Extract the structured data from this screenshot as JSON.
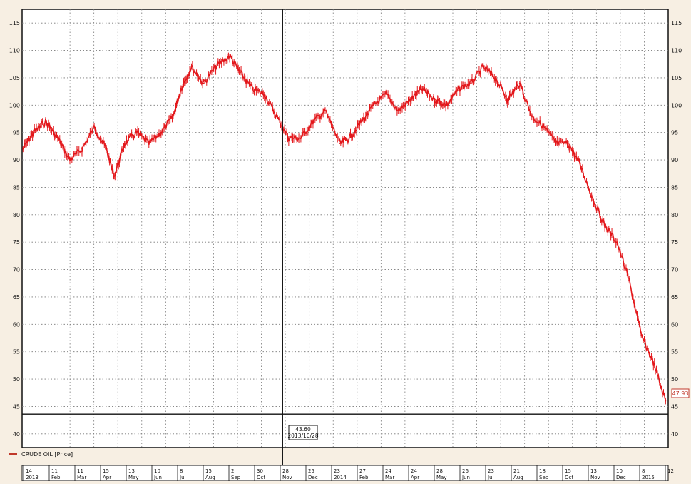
{
  "chart_data": {
    "type": "line",
    "legend": "CRUDE OIL [Price]",
    "legend_color": "#c0392b",
    "series_color": "#e3171b",
    "x_range": [
      "2013-01-01",
      "2015-01-15"
    ],
    "ylim": [
      37.5,
      117.5
    ],
    "y_ticks": [
      40,
      45,
      50,
      55,
      60,
      65,
      70,
      75,
      80,
      85,
      90,
      95,
      100,
      105,
      110,
      115
    ],
    "grid": true,
    "last_value_label": "47.93",
    "crosshair": {
      "date": "2013-10-28",
      "price": 43.6,
      "date_label": "2013/10/28",
      "price_label": "43.60",
      "info_label_1": "43.60",
      "info_label_2": "2013/10/28"
    },
    "x_tick_days": [
      "14",
      "11",
      "11",
      "15",
      "13",
      "10",
      "8",
      "15",
      "2",
      "30",
      "28",
      "25",
      "23",
      "27",
      "24",
      "24",
      "28",
      "26",
      "23",
      "21",
      "18",
      "15",
      "13",
      "10",
      "8",
      "12"
    ],
    "x_tick_months": [
      "2013",
      "Feb",
      "Mar",
      "Apr",
      "May",
      "Jun",
      "Jul",
      "Aug",
      "Sep",
      "Oct",
      "Nov",
      "Dec",
      "2014",
      "Feb",
      "Mar",
      "Apr",
      "May",
      "Jun",
      "Jul",
      "Aug",
      "Sep",
      "Oct",
      "Nov",
      "Dec",
      "2015"
    ],
    "series": [
      {
        "name": "CRUDE OIL [Price]",
        "x": [
          "2013-01-02",
          "2013-01-14",
          "2013-01-28",
          "2013-02-11",
          "2013-02-25",
          "2013-03-11",
          "2013-03-25",
          "2013-04-08",
          "2013-04-17",
          "2013-04-29",
          "2013-05-13",
          "2013-05-27",
          "2013-06-10",
          "2013-06-24",
          "2013-07-03",
          "2013-07-15",
          "2013-07-29",
          "2013-08-12",
          "2013-08-28",
          "2013-09-09",
          "2013-09-23",
          "2013-10-07",
          "2013-10-21",
          "2013-11-04",
          "2013-11-18",
          "2013-12-02",
          "2013-12-16",
          "2014-01-02",
          "2014-01-13",
          "2014-01-27",
          "2014-02-10",
          "2014-02-24",
          "2014-03-10",
          "2014-03-24",
          "2014-04-07",
          "2014-04-21",
          "2014-05-05",
          "2014-05-19",
          "2014-06-02",
          "2014-06-16",
          "2014-06-30",
          "2014-07-14",
          "2014-07-28",
          "2014-08-11",
          "2014-08-25",
          "2014-09-08",
          "2014-09-22",
          "2014-10-06",
          "2014-10-20",
          "2014-11-03",
          "2014-11-17",
          "2014-12-01",
          "2014-12-15",
          "2014-12-29",
          "2015-01-12"
        ],
        "values": [
          92,
          95,
          97,
          94,
          90,
          92,
          96,
          92,
          87,
          93,
          95,
          93,
          95,
          98,
          103,
          107,
          104,
          107,
          109,
          106,
          103,
          102,
          98,
          94,
          94,
          97,
          99,
          93,
          94,
          97,
          100,
          102,
          99,
          101,
          103,
          101,
          100,
          103,
          104,
          107,
          105,
          101,
          104,
          98,
          96,
          93,
          93,
          89,
          83,
          78,
          75,
          68,
          58,
          53,
          46
        ]
      }
    ]
  }
}
